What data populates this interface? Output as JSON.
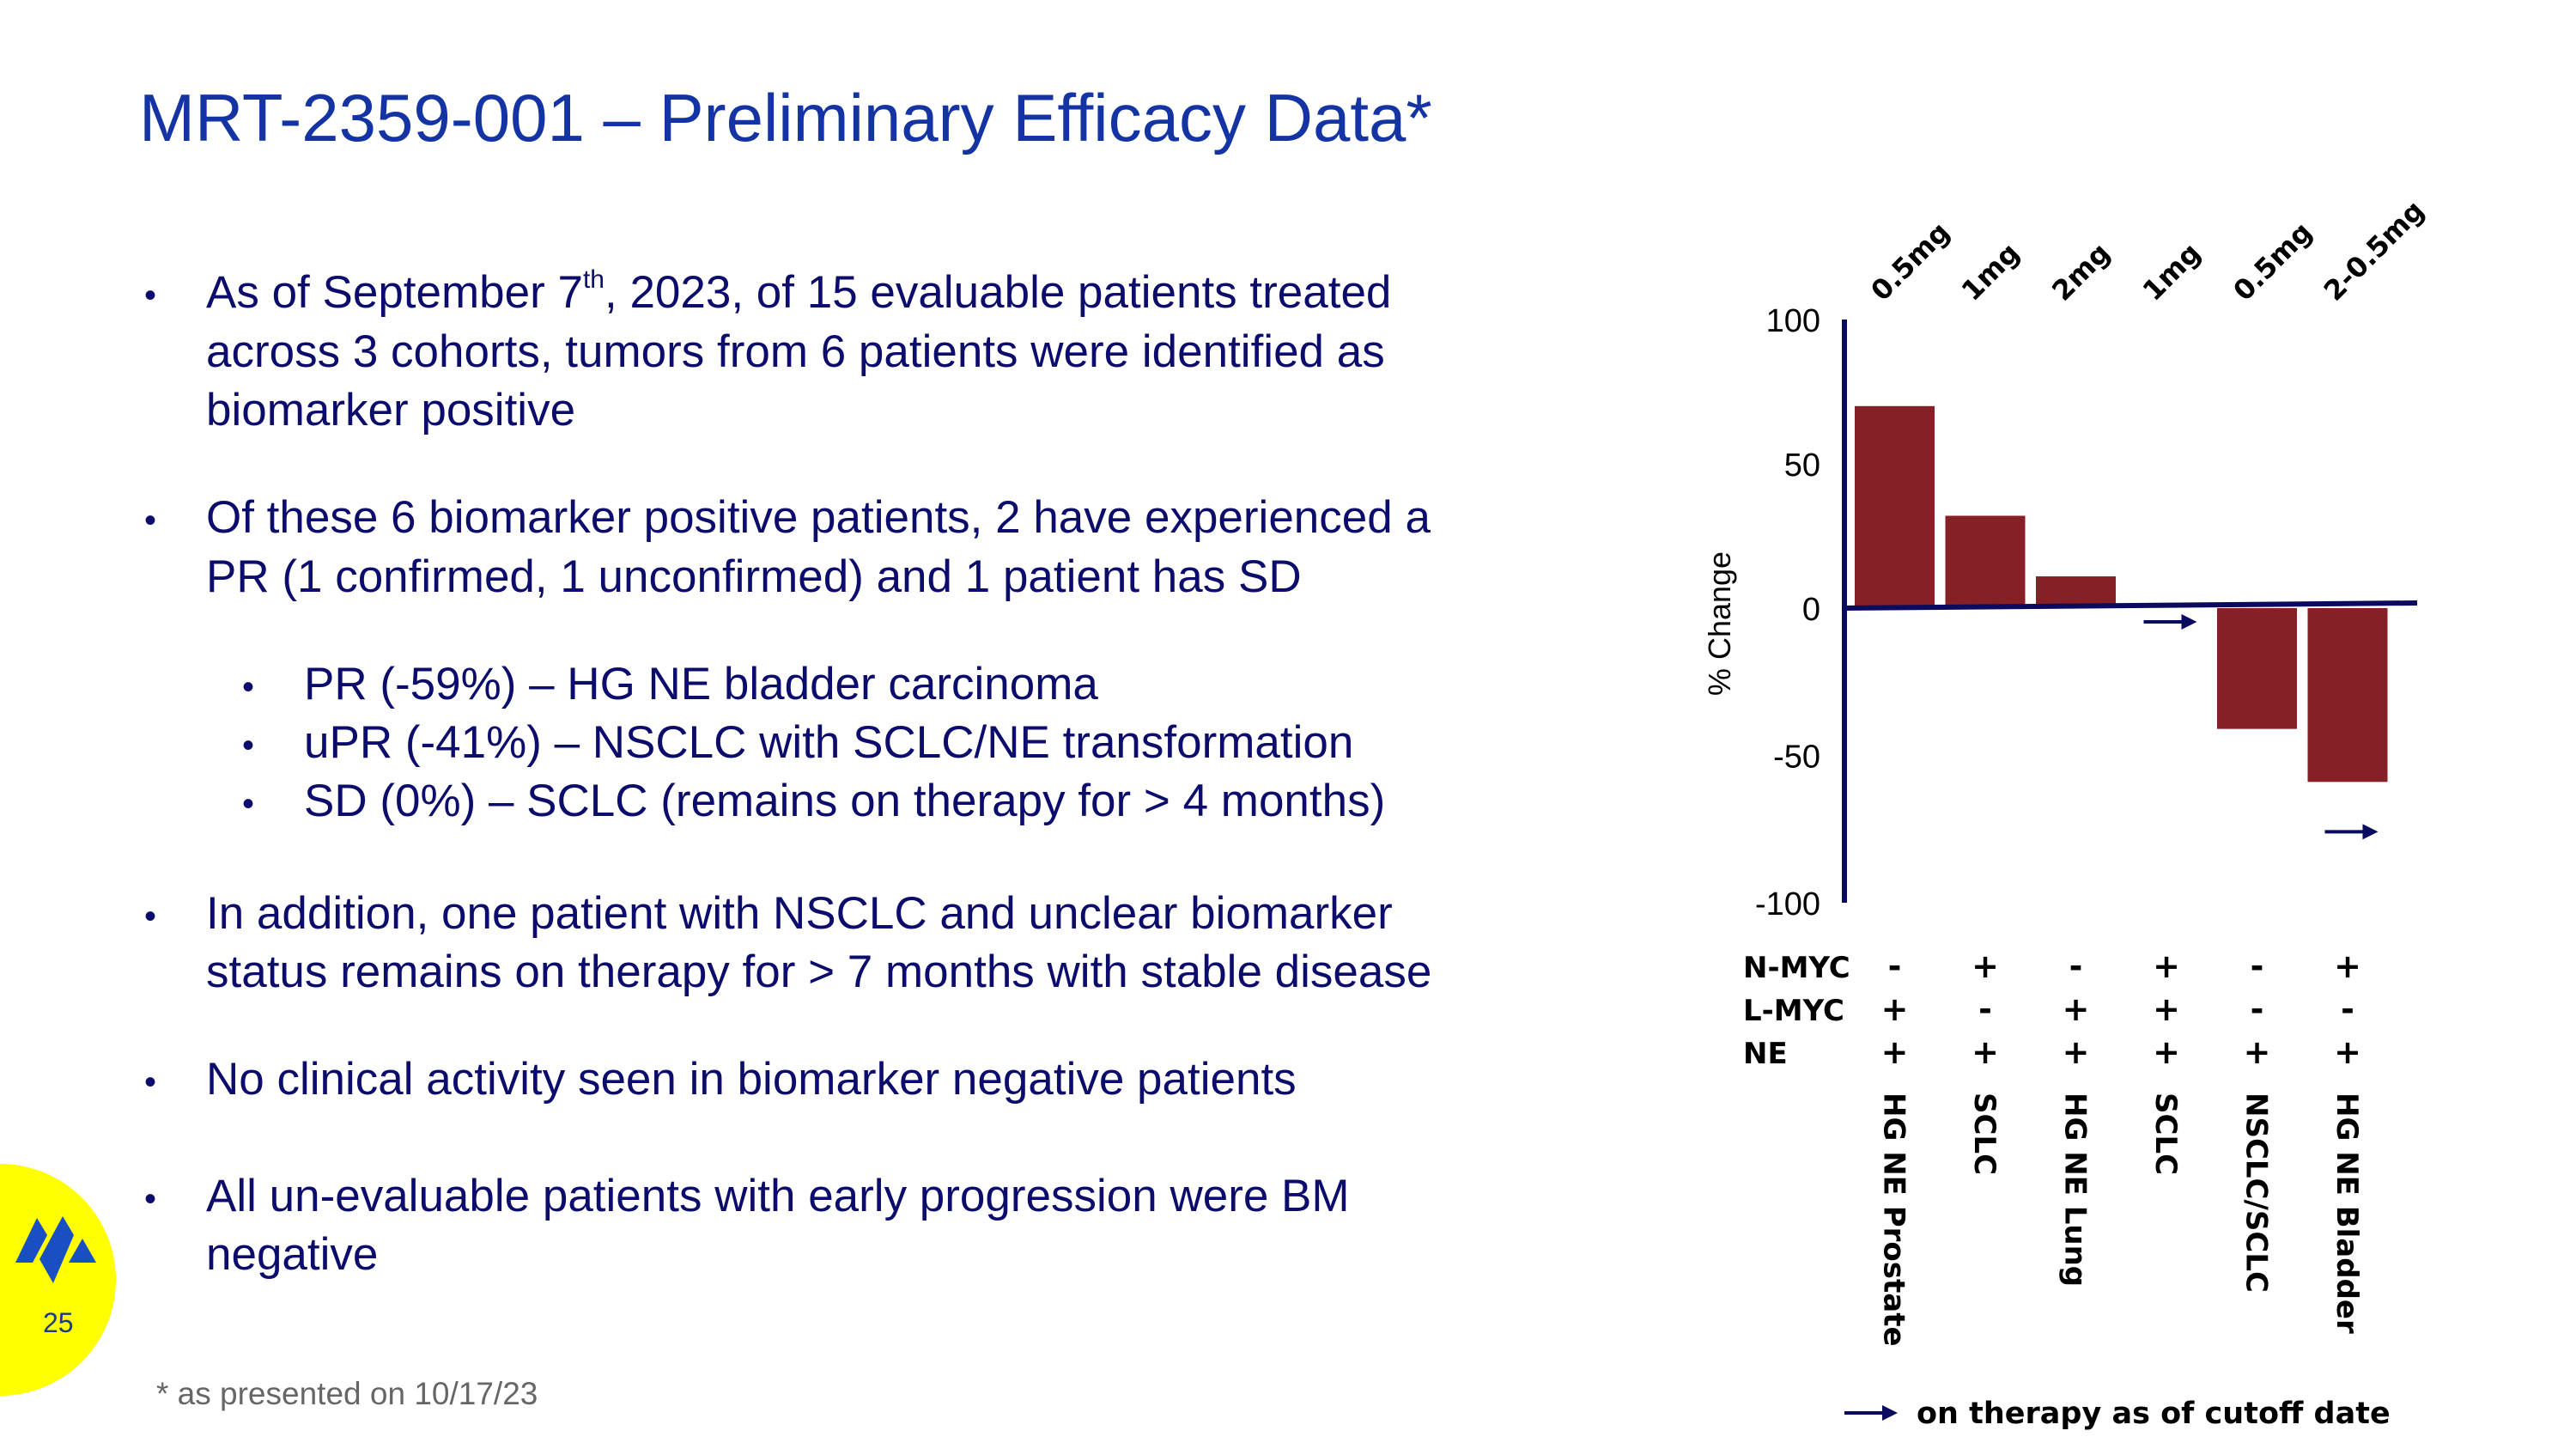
{
  "title": "MRT-2359-001 – Preliminary Efficacy Data*",
  "bullets": [
    {
      "lines": [
        "As of September 7",
        "th",
        ", 2023, of 15 evaluable patients treated",
        "across 3 cohorts, tumors from 6 patients were identified as",
        "biomarker positive"
      ]
    },
    {
      "lines": [
        "Of these 6 biomarker positive patients, 2 have experienced a",
        "PR (1 confirmed, 1 unconfirmed) and 1 patient has SD"
      ]
    },
    {
      "sub": [
        "PR (-59%) – HG NE bladder carcinoma",
        "uPR (-41%) – NSCLC with SCLC/NE transformation",
        "SD (0%) – SCLC (remains on therapy for > 4 months)"
      ]
    },
    {
      "lines": [
        "In addition, one patient with NSCLC and unclear biomarker",
        "status remains on therapy for > 7 months with stable disease"
      ]
    },
    {
      "lines": [
        "No clinical activity seen in biomarker negative patients"
      ]
    },
    {
      "lines": [
        "All un-evaluable patients with early progression were BM",
        "negative"
      ]
    }
  ],
  "footnote": "* as presented on 10/17/23",
  "page_number": "25",
  "logo": {
    "shape": "blue-diamond-mark",
    "color": "#1a4fc4",
    "badge_color": "#ffff00"
  },
  "colors": {
    "bar": "#862027",
    "axis": "#0a0a5e",
    "title": "#1434a4",
    "text": "#0c0c6c"
  },
  "chart_data": {
    "type": "bar",
    "ylabel": "% Change",
    "ylim": [
      -100,
      100
    ],
    "yticks": [
      "100",
      "50",
      "0",
      "-50",
      "-100"
    ],
    "ytick_values": [
      100,
      50,
      0,
      -50,
      -100
    ],
    "grid": false,
    "doses": [
      "0.5mg",
      "1mg",
      "2mg",
      "1mg",
      "0.5mg",
      "2-0.5mg"
    ],
    "categories": [
      "HG NE Prostate",
      "SCLC",
      "HG NE Lung",
      "SCLC",
      "NSCLC/SCLC",
      "HG NE Bladder"
    ],
    "values": [
      70,
      32,
      11,
      0,
      -41,
      -59
    ],
    "on_therapy": [
      false,
      false,
      false,
      true,
      false,
      true
    ],
    "biomarkers": [
      {
        "name": "N-MYC",
        "values": [
          "-",
          "+",
          "-",
          "+",
          "-",
          "+"
        ]
      },
      {
        "name": "L-MYC",
        "values": [
          "+",
          "-",
          "+",
          "+",
          "-",
          "-"
        ]
      },
      {
        "name": "NE",
        "values": [
          "+",
          "+",
          "+",
          "+",
          "+",
          "+"
        ]
      }
    ],
    "legend": "on therapy as of cutoff date",
    "legend_placement": "bottom"
  }
}
